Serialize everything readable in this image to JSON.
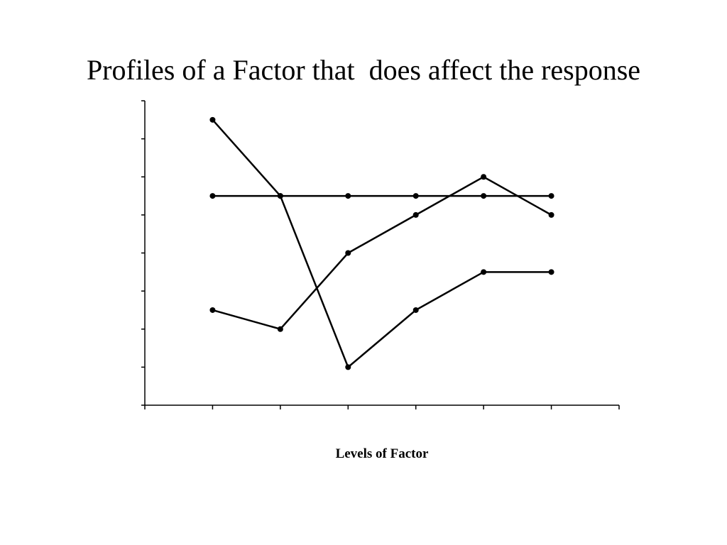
{
  "chart_data": {
    "type": "line",
    "title": "Profiles of a Factor that  does affect the response",
    "x_label": "Levels of Factor",
    "x": [
      1,
      2,
      3,
      4,
      5,
      6
    ],
    "xlim": [
      0,
      7
    ],
    "xticks": [
      0,
      1,
      2,
      3,
      4,
      5,
      6,
      7
    ],
    "ylim": [
      0,
      8
    ],
    "yticks": [
      0,
      1,
      2,
      3,
      4,
      5,
      6,
      7,
      8
    ],
    "grid": false,
    "series": [
      {
        "color": "#000000",
        "values": [
          5.5,
          5.5,
          5.5,
          5.5,
          5.5,
          5.5
        ]
      },
      {
        "color": "#000000",
        "values": [
          7.5,
          5.5,
          1,
          2.5,
          3.5,
          3.5
        ]
      },
      {
        "color": "#000000",
        "values": [
          2.5,
          2,
          4,
          5,
          6,
          5
        ]
      }
    ]
  }
}
